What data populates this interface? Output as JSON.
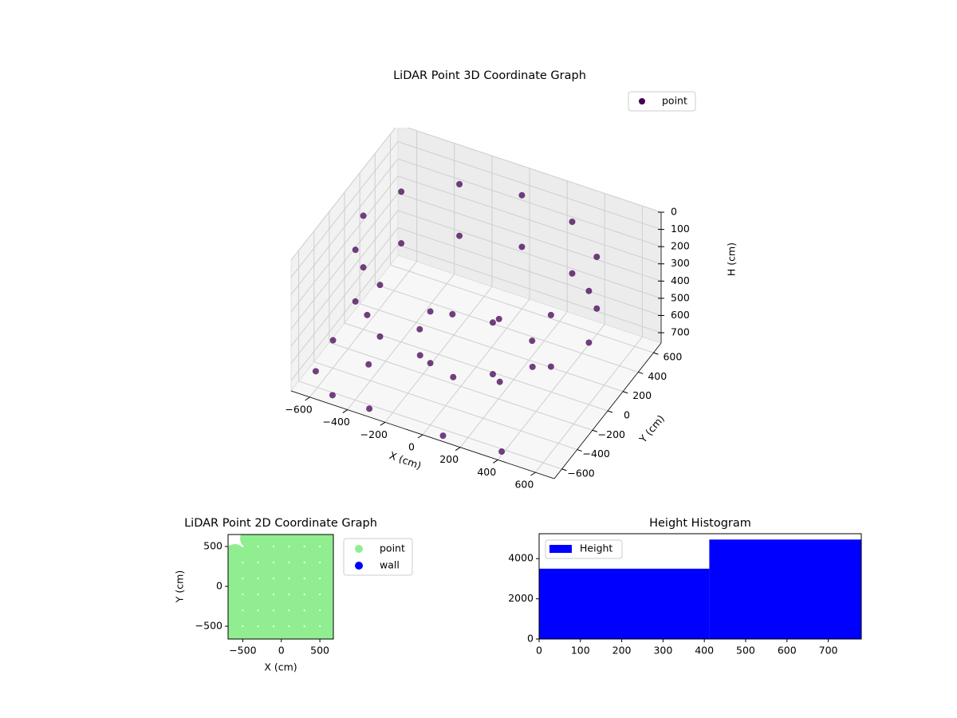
{
  "chart_data": [
    {
      "type": "scatter3d",
      "title": "LiDAR Point 3D Coordinate Graph",
      "xlabel": "X (cm)",
      "ylabel": "Y (cm)",
      "zlabel": "H (cm)",
      "xlim": [
        -700,
        700
      ],
      "ylim": [
        -700,
        700
      ],
      "zlim": [
        0,
        760
      ],
      "z_inverted": true,
      "xticks": [
        {
          "value": -600,
          "label": "−600"
        },
        {
          "value": -400,
          "label": "−400"
        },
        {
          "value": -200,
          "label": "−200"
        },
        0,
        200,
        400,
        600
      ],
      "yticks": [
        {
          "value": -600,
          "label": "−600"
        },
        {
          "value": -400,
          "label": "−400"
        },
        {
          "value": -200,
          "label": "−200"
        },
        0,
        200,
        400,
        600
      ],
      "zticks": [
        0,
        100,
        200,
        300,
        400,
        500,
        600,
        700
      ],
      "grid": true,
      "legend": "upper right",
      "series": [
        {
          "name": "point",
          "color": "#440154",
          "x": [
            600,
            520,
            300,
            0,
            -300,
            -520,
            -600,
            -520,
            -300,
            0,
            300,
            520,
            600,
            520,
            300,
            0,
            -300,
            -520,
            -600,
            -520,
            -300,
            0,
            300,
            520,
            300,
            212,
            0,
            -212,
            -300,
            -212,
            0,
            212,
            -650,
            -500,
            -450,
            -620,
            100,
            400,
            -300,
            -680
          ],
          "y": [
            0,
            300,
            520,
            600,
            520,
            300,
            0,
            -300,
            -520,
            -600,
            -520,
            -300,
            0,
            300,
            520,
            600,
            520,
            300,
            0,
            -300,
            -520,
            -600,
            -520,
            -300,
            0,
            212,
            300,
            212,
            0,
            -212,
            -300,
            -212,
            -500,
            -650,
            -300,
            100,
            -680,
            -650,
            -660,
            -200
          ],
          "z": [
            100,
            100,
            100,
            100,
            100,
            100,
            100,
            100,
            100,
            100,
            100,
            100,
            400,
            400,
            400,
            400,
            400,
            400,
            400,
            400,
            400,
            400,
            400,
            400,
            650,
            650,
            650,
            650,
            650,
            650,
            650,
            650,
            740,
            740,
            740,
            740,
            740,
            740,
            740,
            740
          ]
        }
      ]
    },
    {
      "type": "scatter",
      "title": "LiDAR Point 2D Coordinate Graph",
      "xlabel": "X (cm)",
      "ylabel": "Y (cm)",
      "xlim": [
        -690,
        675
      ],
      "ylim": [
        -660,
        650
      ],
      "xticks": [
        {
          "value": -500,
          "label": "−500"
        },
        0,
        500
      ],
      "yticks": [
        {
          "value": -500,
          "label": "−500"
        },
        0,
        500
      ],
      "legend": "outside right",
      "series": [
        {
          "name": "point",
          "color": "#90ee90",
          "x": [
            -400,
            -200,
            0,
            200,
            400,
            600,
            -600,
            -400,
            -200,
            0,
            200,
            400,
            600,
            -600,
            -400,
            -200,
            0,
            200,
            400,
            600,
            -600,
            -400,
            -200,
            0,
            200,
            400,
            600,
            -600,
            -400,
            -200,
            0,
            200,
            400,
            600,
            -600,
            -400,
            -200,
            0,
            200,
            400,
            600,
            -600,
            -400,
            -200,
            0,
            200,
            400,
            600
          ],
          "y": [
            600,
            600,
            600,
            600,
            600,
            600,
            400,
            400,
            400,
            400,
            400,
            400,
            400,
            200,
            200,
            200,
            200,
            200,
            200,
            200,
            0,
            0,
            0,
            0,
            0,
            0,
            0,
            -200,
            -200,
            -200,
            -200,
            -200,
            -200,
            -200,
            -400,
            -400,
            -400,
            -400,
            -400,
            -400,
            -400,
            -600,
            -600,
            -600,
            -600,
            -600,
            -600,
            -600
          ]
        },
        {
          "name": "wall",
          "color": "#0000ff",
          "x": [],
          "y": []
        }
      ]
    },
    {
      "type": "histogram",
      "title": "Height Histogram",
      "bins": [
        0,
        412,
        780
      ],
      "series": [
        {
          "name": "Height",
          "color": "#0000ff",
          "values": [
            3500,
            4950
          ]
        }
      ],
      "xlim": [
        0,
        780
      ],
      "ylim": [
        0,
        5240
      ],
      "xticks": [
        0,
        100,
        200,
        300,
        400,
        500,
        600,
        700
      ],
      "yticks": [
        0,
        2000,
        4000
      ],
      "legend": "upper left"
    }
  ]
}
